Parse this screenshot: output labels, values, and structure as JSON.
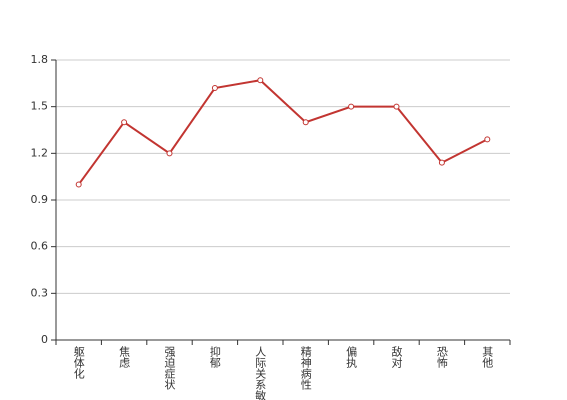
{
  "chart_data": {
    "type": "line",
    "categories": [
      "躯体化",
      "焦虑",
      "强迫症状",
      "抑郁",
      "人际关系敏感",
      "精神病性",
      "偏执",
      "敌对",
      "恐怖",
      "其他"
    ],
    "values": [
      1.0,
      1.4,
      1.2,
      1.62,
      1.67,
      1.4,
      1.5,
      1.5,
      1.14,
      1.29
    ],
    "color": "#c23531",
    "ylim": [
      0,
      1.8
    ],
    "yticks": [
      0,
      0.3,
      0.6,
      0.9,
      1.2,
      1.5,
      1.8
    ],
    "grid": true
  }
}
